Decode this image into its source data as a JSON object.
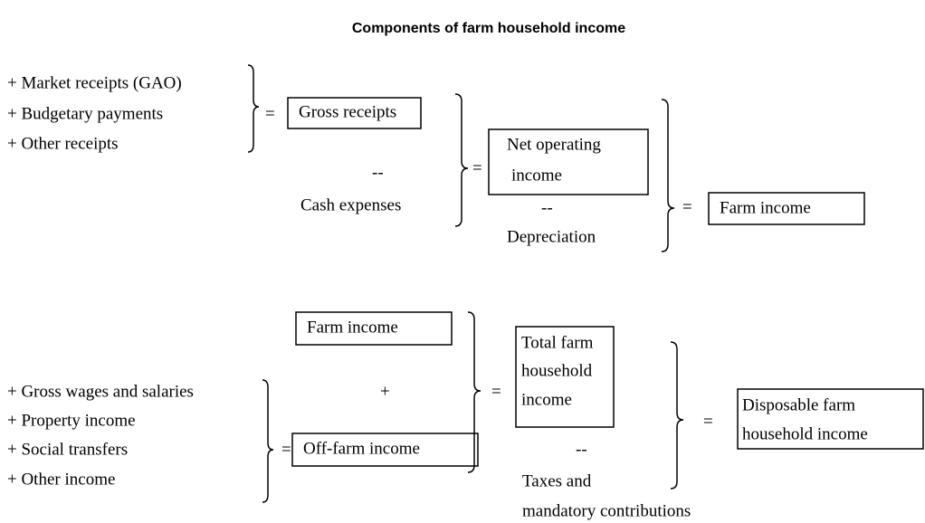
{
  "title": "Components of farm household income",
  "operators": {
    "equals": "=",
    "plus": "+",
    "minus": "--"
  },
  "top": {
    "items": [
      "+ Market receipts (GAO)",
      "+ Budgetary payments",
      "+ Other receipts"
    ],
    "gross_receipts": "Gross receipts",
    "cash_expenses": "Cash expenses",
    "net_operating_income": [
      "Net operating",
      "income"
    ],
    "depreciation": "Depreciation",
    "farm_income": "Farm income"
  },
  "bottom": {
    "farm_income": "Farm income",
    "items": [
      "+ Gross wages and salaries",
      "+ Property income",
      "+ Social transfers",
      "+ Other income"
    ],
    "off_farm_income": "Off-farm income",
    "total_farm_household_income": [
      "Total farm",
      "household",
      "income"
    ],
    "taxes": [
      "Taxes and",
      "mandatory contributions"
    ],
    "disposable_income": [
      "Disposable farm",
      "household income"
    ]
  }
}
